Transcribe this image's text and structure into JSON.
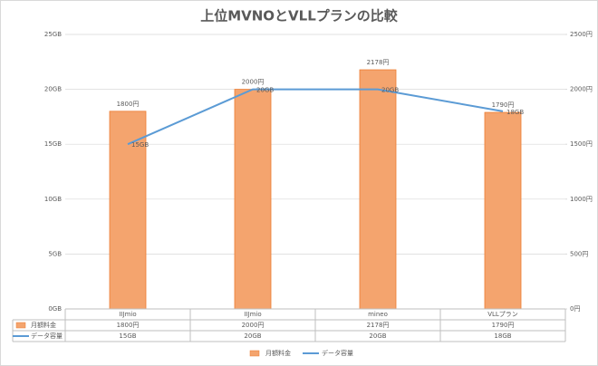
{
  "chart_data": {
    "type": "combo",
    "title": "上位MVNOとVLLプランの比較",
    "categories": [
      "IIJmio",
      "IIJmio",
      "mineo",
      "VLLプラン"
    ],
    "series": [
      {
        "name": "月額料金",
        "type": "bar",
        "axis": "y2",
        "color": "#f4a46e",
        "values": [
          1800,
          2000,
          2178,
          1790
        ],
        "value_labels": [
          "1800円",
          "2000円",
          "2178円",
          "1790円"
        ]
      },
      {
        "name": "データ容量",
        "type": "line",
        "axis": "y",
        "color": "#5b9bd5",
        "values": [
          15,
          20,
          20,
          18
        ],
        "value_labels": [
          "15GB",
          "20GB",
          "20GB",
          "18GB"
        ]
      }
    ],
    "ylim": [
      0,
      25
    ],
    "yticks": [
      {
        "value": 0,
        "label": "0GB"
      },
      {
        "value": 5,
        "label": "5GB"
      },
      {
        "value": 10,
        "label": "10GB"
      },
      {
        "value": 15,
        "label": "15GB"
      },
      {
        "value": 20,
        "label": "20GB"
      },
      {
        "value": 25,
        "label": "25GB"
      }
    ],
    "y2lim": [
      0,
      2500
    ],
    "y2ticks": [
      {
        "value": 0,
        "label": "0円"
      },
      {
        "value": 500,
        "label": "500円"
      },
      {
        "value": 1000,
        "label": "1000円"
      },
      {
        "value": 1500,
        "label": "1500円"
      },
      {
        "value": 2000,
        "label": "2000円"
      },
      {
        "value": 2500,
        "label": "2500円"
      }
    ],
    "grid": true,
    "data_table": true,
    "legend": "bottom"
  }
}
